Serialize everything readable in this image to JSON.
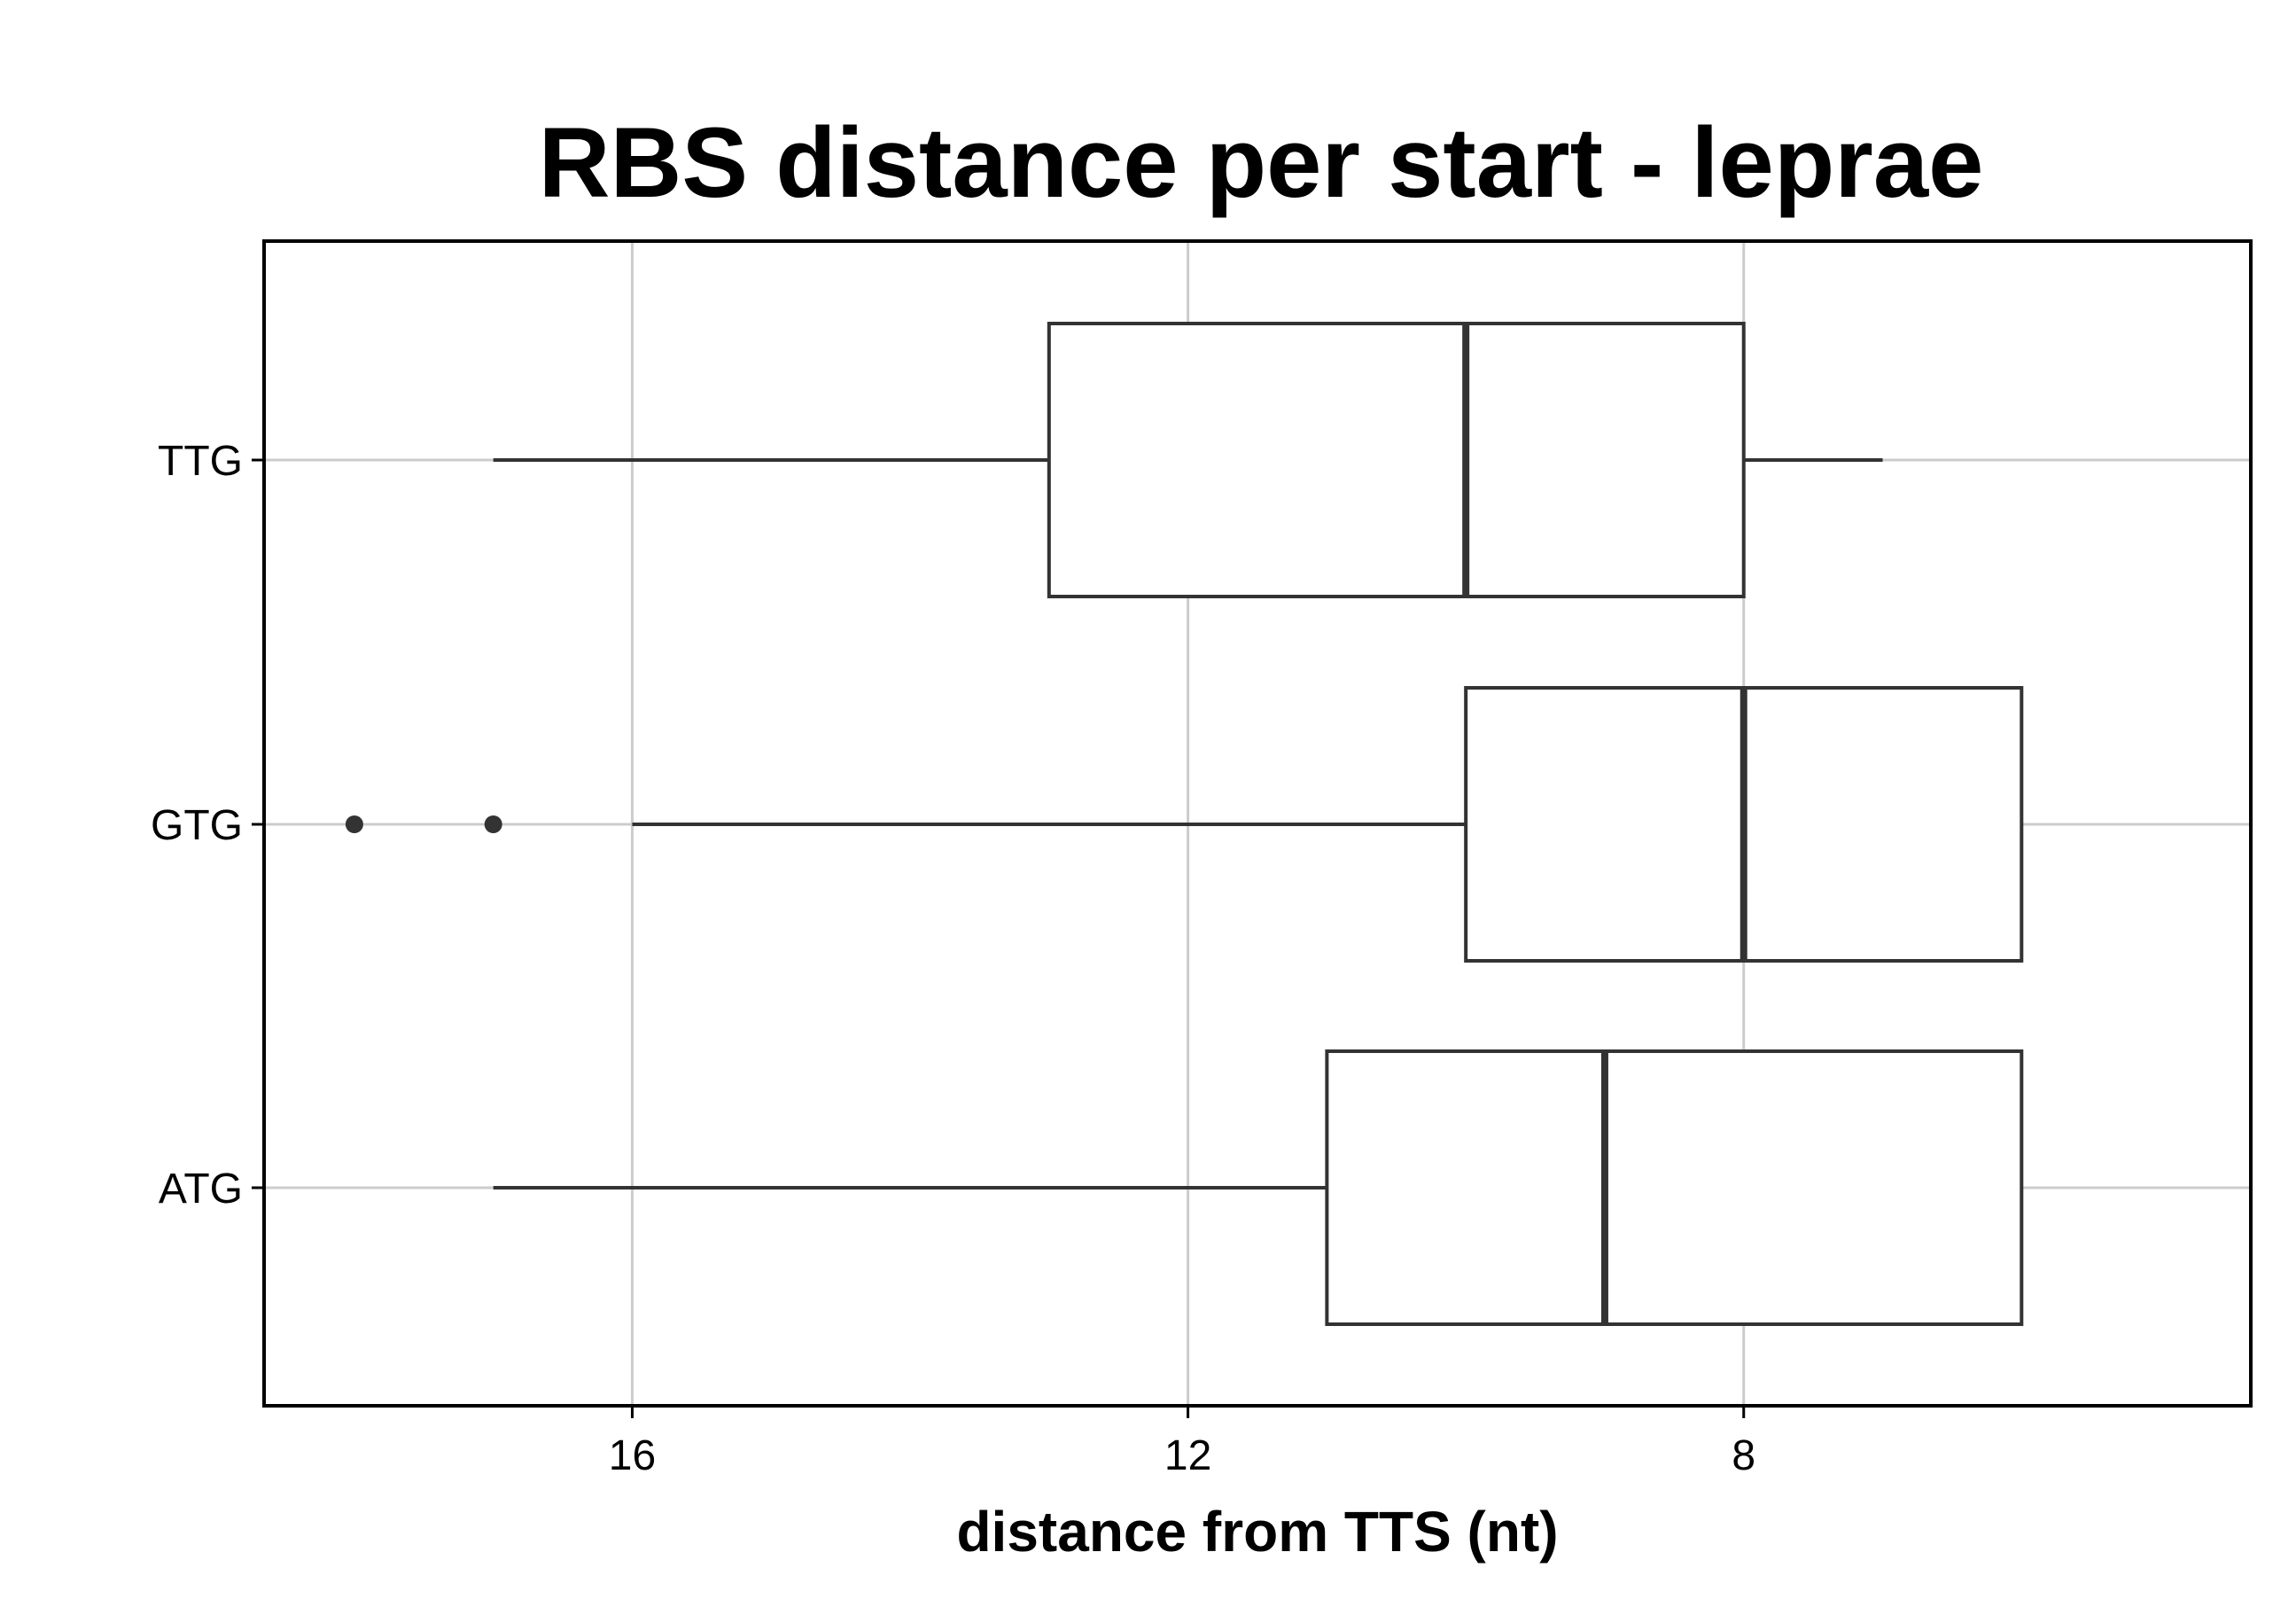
{
  "chart_data": {
    "type": "boxplot",
    "orientation": "horizontal",
    "title": "RBS distance per start - leprae",
    "xlabel": "distance from TTS (nt)",
    "ylabel": "",
    "x_reversed": true,
    "xlim": [
      18.65,
      4.35
    ],
    "x_ticks": [
      16,
      12,
      8
    ],
    "x_tick_labels": [
      "16",
      "12",
      "8"
    ],
    "grid": true,
    "categories": [
      "ATG",
      "GTG",
      "TTG"
    ],
    "boxes": [
      {
        "category": "ATG",
        "whisker_low": 6,
        "q1": 6,
        "median": 9,
        "q3": 11,
        "whisker_high": 17,
        "outliers": []
      },
      {
        "category": "GTG",
        "whisker_low": 6,
        "q1": 6,
        "median": 8,
        "q3": 10,
        "whisker_high": 16,
        "outliers": [
          17,
          18
        ]
      },
      {
        "category": "TTG",
        "whisker_low": 7,
        "q1": 8,
        "median": 10,
        "q3": 13,
        "whisker_high": 17,
        "outliers": []
      }
    ]
  }
}
